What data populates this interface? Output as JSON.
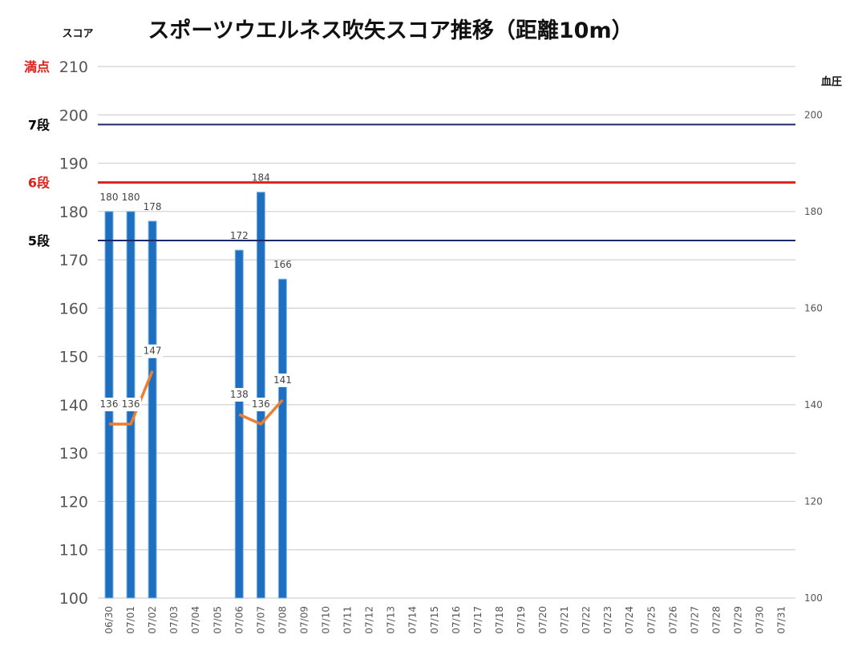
{
  "chart_data": {
    "type": "bar",
    "title": "スポーツウエルネス吹矢スコア推移（距離10m）",
    "ylabel": "スコア",
    "y2label": "血圧",
    "ylim": [
      100,
      210
    ],
    "y2lim": [
      100,
      210
    ],
    "yticks": [
      100,
      110,
      120,
      130,
      140,
      150,
      160,
      170,
      180,
      190,
      200,
      210
    ],
    "y2ticks": [
      100,
      120,
      140,
      160,
      180,
      200
    ],
    "grid": true,
    "categories": [
      "06/30",
      "07/01",
      "07/02",
      "07/03",
      "07/04",
      "07/05",
      "07/06",
      "07/07",
      "07/08",
      "07/09",
      "07/10",
      "07/11",
      "07/12",
      "07/13",
      "07/14",
      "07/15",
      "07/16",
      "07/17",
      "07/18",
      "07/19",
      "07/20",
      "07/21",
      "07/22",
      "07/23",
      "07/24",
      "07/25",
      "07/26",
      "07/27",
      "07/28",
      "07/29",
      "07/30",
      "07/31"
    ],
    "series": [
      {
        "type": "bar",
        "axis": "left",
        "color": "#1f6fc1",
        "values": [
          180,
          180,
          178,
          null,
          null,
          null,
          172,
          184,
          166,
          null,
          null,
          null,
          null,
          null,
          null,
          null,
          null,
          null,
          null,
          null,
          null,
          null,
          null,
          null,
          null,
          null,
          null,
          null,
          null,
          null,
          null,
          null
        ],
        "labels": [
          "180",
          "180",
          "178",
          "",
          "",
          "",
          "172",
          "184",
          "166",
          "",
          "",
          "",
          "",
          "",
          "",
          "",
          "",
          "",
          "",
          "",
          "",
          "",
          "",
          "",
          "",
          "",
          "",
          "",
          "",
          "",
          "",
          ""
        ]
      },
      {
        "type": "line",
        "axis": "right",
        "color": "#ed7d31",
        "values": [
          136,
          136,
          147,
          null,
          null,
          null,
          138,
          136,
          141,
          null,
          null,
          null,
          null,
          null,
          null,
          null,
          null,
          null,
          null,
          null,
          null,
          null,
          null,
          null,
          null,
          null,
          null,
          null,
          null,
          null,
          null,
          null
        ],
        "labels": [
          "136",
          "136",
          "147",
          "",
          "",
          "",
          "138",
          "136",
          "141",
          "",
          "",
          "",
          "",
          "",
          "",
          "",
          "",
          "",
          "",
          "",
          "",
          "",
          "",
          "",
          "",
          "",
          "",
          "",
          "",
          "",
          "",
          ""
        ]
      }
    ],
    "reference_lines": [
      {
        "label": "満点",
        "value": 210,
        "color": "#e0201b",
        "line": false
      },
      {
        "label": "7段",
        "value": 198,
        "color": "#000000",
        "line_color": "#1b2a6b",
        "line": true
      },
      {
        "label": "6段",
        "value": 186,
        "color": "#e0201b",
        "line_color": "#e0201b",
        "line": true
      },
      {
        "label": "5段",
        "value": 174,
        "color": "#000000",
        "line_color": "#1b2a6b",
        "line": true
      }
    ]
  }
}
